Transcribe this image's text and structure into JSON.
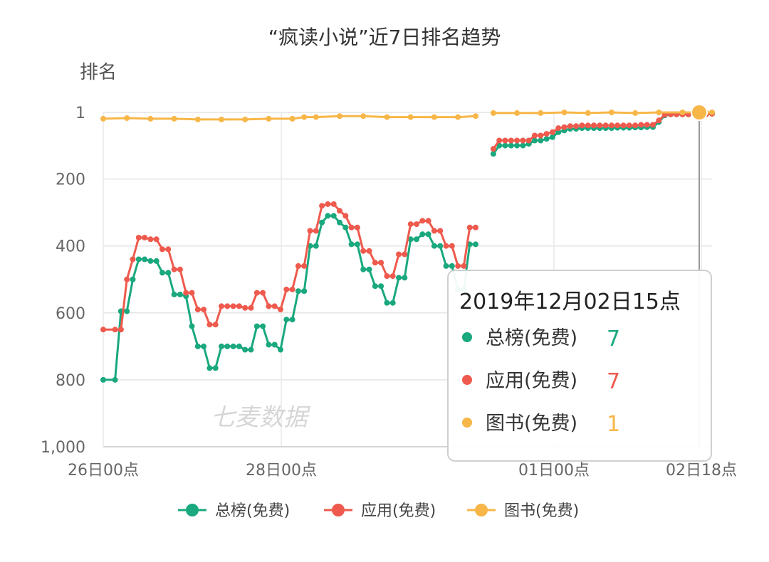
{
  "chart_data": {
    "type": "line",
    "title": "“疯读小说”近7日排名趋势",
    "ylabel": "排名",
    "xlabel": "",
    "y_inverted": true,
    "ylim": [
      1,
      1000
    ],
    "y_ticks": [
      "1",
      "200",
      "400",
      "600",
      "800",
      "1,000"
    ],
    "x_tick_labels": [
      "26日00点",
      "28日00点",
      "01日00点",
      "02日18点"
    ],
    "grid": true,
    "legend_position": "bottom-center",
    "watermark": "七麦数据",
    "series": [
      {
        "name": "总榜(免费)",
        "color": "#1aa87e",
        "segments": [
          [
            [
              0,
              800
            ],
            [
              2,
              800
            ],
            [
              3,
              595
            ],
            [
              4,
              595
            ],
            [
              5,
              500
            ],
            [
              6,
              440
            ],
            [
              7,
              440
            ],
            [
              8,
              445
            ],
            [
              9,
              445
            ],
            [
              10,
              480
            ],
            [
              11,
              480
            ],
            [
              12,
              545
            ],
            [
              13,
              545
            ],
            [
              14,
              550
            ],
            [
              15,
              640
            ],
            [
              16,
              700
            ],
            [
              17,
              700
            ],
            [
              18,
              765
            ],
            [
              19,
              765
            ],
            [
              20,
              700
            ],
            [
              21,
              700
            ],
            [
              22,
              700
            ],
            [
              23,
              700
            ],
            [
              24,
              710
            ],
            [
              25,
              710
            ],
            [
              26,
              640
            ],
            [
              27,
              640
            ],
            [
              28,
              695
            ],
            [
              29,
              695
            ],
            [
              30,
              710
            ],
            [
              31,
              620
            ],
            [
              32,
              620
            ],
            [
              33,
              535
            ],
            [
              34,
              535
            ],
            [
              35,
              400
            ],
            [
              36,
              400
            ],
            [
              37,
              330
            ],
            [
              38,
              310
            ],
            [
              39,
              310
            ],
            [
              40,
              330
            ],
            [
              41,
              345
            ],
            [
              42,
              395
            ],
            [
              43,
              395
            ],
            [
              44,
              470
            ],
            [
              45,
              470
            ],
            [
              46,
              520
            ],
            [
              47,
              520
            ],
            [
              48,
              570
            ],
            [
              49,
              570
            ],
            [
              50,
              495
            ],
            [
              51,
              495
            ],
            [
              52,
              380
            ],
            [
              53,
              380
            ],
            [
              54,
              365
            ],
            [
              55,
              365
            ],
            [
              56,
              400
            ],
            [
              57,
              400
            ],
            [
              58,
              460
            ],
            [
              59,
              460
            ],
            [
              60,
              530
            ],
            [
              61,
              530
            ],
            [
              62,
              395
            ],
            [
              63,
              395
            ]
          ],
          [
            [
              66,
              125
            ],
            [
              67,
              100
            ],
            [
              68,
              100
            ],
            [
              69,
              100
            ],
            [
              70,
              100
            ],
            [
              71,
              100
            ],
            [
              72,
              95
            ],
            [
              73,
              85
            ],
            [
              74,
              85
            ],
            [
              75,
              80
            ],
            [
              76,
              75
            ],
            [
              77,
              60
            ],
            [
              78,
              55
            ],
            [
              79,
              50
            ],
            [
              80,
              50
            ],
            [
              81,
              48
            ],
            [
              82,
              48
            ],
            [
              83,
              48
            ],
            [
              84,
              48
            ],
            [
              85,
              48
            ],
            [
              86,
              48
            ],
            [
              87,
              47
            ],
            [
              88,
              47
            ],
            [
              89,
              47
            ],
            [
              90,
              46
            ],
            [
              91,
              46
            ],
            [
              92,
              45
            ],
            [
              93,
              45
            ],
            [
              94,
              30
            ],
            [
              95,
              10
            ],
            [
              96,
              7
            ],
            [
              97,
              7
            ],
            [
              98,
              7
            ],
            [
              99,
              7
            ],
            [
              100,
              7
            ],
            [
              101,
              7
            ],
            [
              102,
              7
            ],
            [
              103,
              5
            ]
          ]
        ]
      },
      {
        "name": "应用(免费)",
        "color": "#ee5a4d",
        "segments": [
          [
            [
              0,
              650
            ],
            [
              2,
              650
            ],
            [
              3,
              650
            ],
            [
              4,
              500
            ],
            [
              5,
              440
            ],
            [
              6,
              375
            ],
            [
              7,
              375
            ],
            [
              8,
              380
            ],
            [
              9,
              380
            ],
            [
              10,
              410
            ],
            [
              11,
              410
            ],
            [
              12,
              470
            ],
            [
              13,
              470
            ],
            [
              14,
              540
            ],
            [
              15,
              540
            ],
            [
              16,
              590
            ],
            [
              17,
              590
            ],
            [
              18,
              635
            ],
            [
              19,
              635
            ],
            [
              20,
              580
            ],
            [
              21,
              580
            ],
            [
              22,
              580
            ],
            [
              23,
              580
            ],
            [
              24,
              585
            ],
            [
              25,
              585
            ],
            [
              26,
              540
            ],
            [
              27,
              540
            ],
            [
              28,
              580
            ],
            [
              29,
              580
            ],
            [
              30,
              590
            ],
            [
              31,
              530
            ],
            [
              32,
              530
            ],
            [
              33,
              460
            ],
            [
              34,
              460
            ],
            [
              35,
              355
            ],
            [
              36,
              355
            ],
            [
              37,
              280
            ],
            [
              38,
              275
            ],
            [
              39,
              275
            ],
            [
              40,
              295
            ],
            [
              41,
              310
            ],
            [
              42,
              345
            ],
            [
              43,
              345
            ],
            [
              44,
              415
            ],
            [
              45,
              415
            ],
            [
              46,
              450
            ],
            [
              47,
              450
            ],
            [
              48,
              490
            ],
            [
              49,
              490
            ],
            [
              50,
              425
            ],
            [
              51,
              425
            ],
            [
              52,
              335
            ],
            [
              53,
              335
            ],
            [
              54,
              325
            ],
            [
              55,
              325
            ],
            [
              56,
              355
            ],
            [
              57,
              355
            ],
            [
              58,
              400
            ],
            [
              59,
              400
            ],
            [
              60,
              460
            ],
            [
              61,
              460
            ],
            [
              62,
              345
            ],
            [
              63,
              345
            ]
          ],
          [
            [
              66,
              110
            ],
            [
              67,
              85
            ],
            [
              68,
              85
            ],
            [
              69,
              85
            ],
            [
              70,
              85
            ],
            [
              71,
              85
            ],
            [
              72,
              85
            ],
            [
              73,
              70
            ],
            [
              74,
              70
            ],
            [
              75,
              65
            ],
            [
              76,
              60
            ],
            [
              77,
              48
            ],
            [
              78,
              45
            ],
            [
              79,
              42
            ],
            [
              80,
              42
            ],
            [
              81,
              40
            ],
            [
              82,
              40
            ],
            [
              83,
              40
            ],
            [
              84,
              40
            ],
            [
              85,
              40
            ],
            [
              86,
              40
            ],
            [
              87,
              40
            ],
            [
              88,
              40
            ],
            [
              89,
              40
            ],
            [
              90,
              40
            ],
            [
              91,
              38
            ],
            [
              92,
              38
            ],
            [
              93,
              38
            ],
            [
              94,
              25
            ],
            [
              95,
              8
            ],
            [
              96,
              7
            ],
            [
              97,
              7
            ],
            [
              98,
              7
            ],
            [
              99,
              7
            ],
            [
              100,
              7
            ],
            [
              101,
              7
            ],
            [
              102,
              7
            ],
            [
              103,
              5
            ]
          ]
        ]
      },
      {
        "name": "图书(免费)",
        "color": "#f7b648",
        "segments": [
          [
            [
              0,
              20
            ],
            [
              4,
              18
            ],
            [
              8,
              20
            ],
            [
              12,
              20
            ],
            [
              16,
              22
            ],
            [
              20,
              22
            ],
            [
              24,
              22
            ],
            [
              28,
              20
            ],
            [
              32,
              20
            ],
            [
              34,
              15
            ],
            [
              36,
              15
            ],
            [
              40,
              12
            ],
            [
              44,
              12
            ],
            [
              48,
              15
            ],
            [
              52,
              15
            ],
            [
              56,
              15
            ],
            [
              60,
              15
            ],
            [
              63,
              12
            ]
          ],
          [
            [
              66,
              3
            ],
            [
              70,
              3
            ],
            [
              74,
              3
            ],
            [
              78,
              1
            ],
            [
              82,
              3
            ],
            [
              86,
              1
            ],
            [
              90,
              3
            ],
            [
              94,
              1
            ],
            [
              98,
              1
            ],
            [
              102,
              1
            ],
            [
              103,
              1
            ]
          ]
        ]
      }
    ],
    "tooltip": {
      "title": "2019年12月02日15点",
      "entries": [
        {
          "name": "总榜(免费)",
          "value": "7",
          "color": "#1aa87e"
        },
        {
          "name": "应用(免费)",
          "value": "7",
          "color": "#ee5a4d"
        },
        {
          "name": "图书(免费)",
          "value": "1",
          "color": "#f7b648"
        }
      ]
    }
  }
}
